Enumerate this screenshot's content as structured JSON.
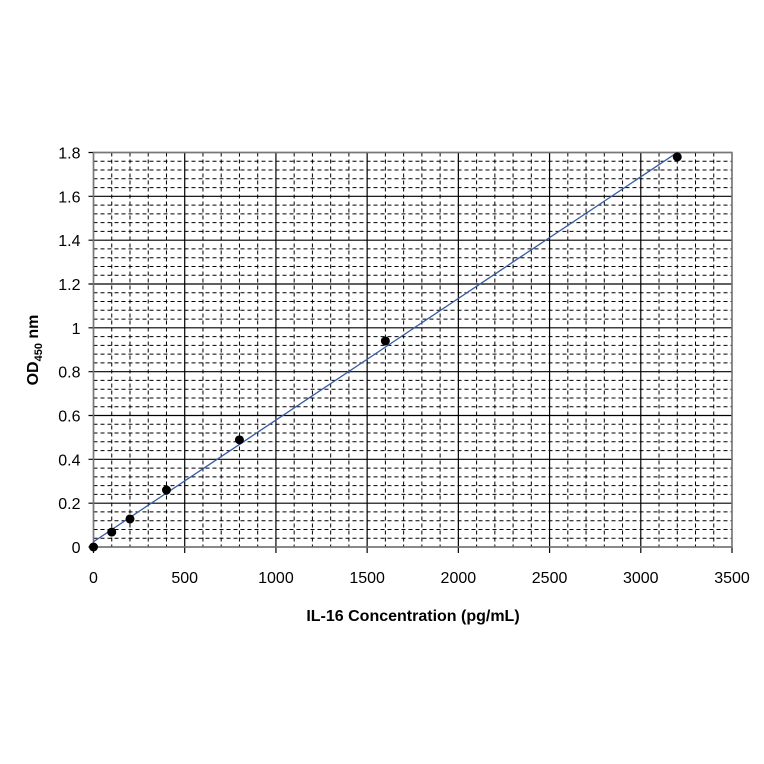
{
  "chart_data": {
    "type": "scatter",
    "title": "",
    "xlabel": "IL-16 Concentration (pg/mL)",
    "ylabel": {
      "main": "OD",
      "subscript": "450",
      "suffix": " nm"
    },
    "xlim": [
      0,
      3500
    ],
    "ylim": [
      0,
      1.8
    ],
    "x_ticks": [
      "0",
      "500",
      "1000",
      "1500",
      "2000",
      "2500",
      "3000",
      "3500"
    ],
    "y_ticks": [
      "0",
      "0.2",
      "0.4",
      "0.6",
      "0.8",
      "1",
      "1.2",
      "1.4",
      "1.6",
      "1.8"
    ],
    "x_tick_values": [
      0,
      500,
      1000,
      1500,
      2000,
      2500,
      3000,
      3500
    ],
    "y_tick_values": [
      0,
      0.2,
      0.4,
      0.6,
      0.8,
      1.0,
      1.2,
      1.4,
      1.6,
      1.8
    ],
    "x_minor_step": 100,
    "y_minor_step": 0.04,
    "grid": true,
    "legend": "none",
    "trendline": "linear",
    "points": [
      {
        "x": 0,
        "y": 0
      },
      {
        "x": 100,
        "y": 0.068
      },
      {
        "x": 200,
        "y": 0.128
      },
      {
        "x": 400,
        "y": 0.26
      },
      {
        "x": 800,
        "y": 0.489
      },
      {
        "x": 1600,
        "y": 0.94
      },
      {
        "x": 3200,
        "y": 1.78
      }
    ],
    "colors": {
      "marker": "#000000",
      "line": "#3a5aa8",
      "grid": "#000000"
    }
  }
}
